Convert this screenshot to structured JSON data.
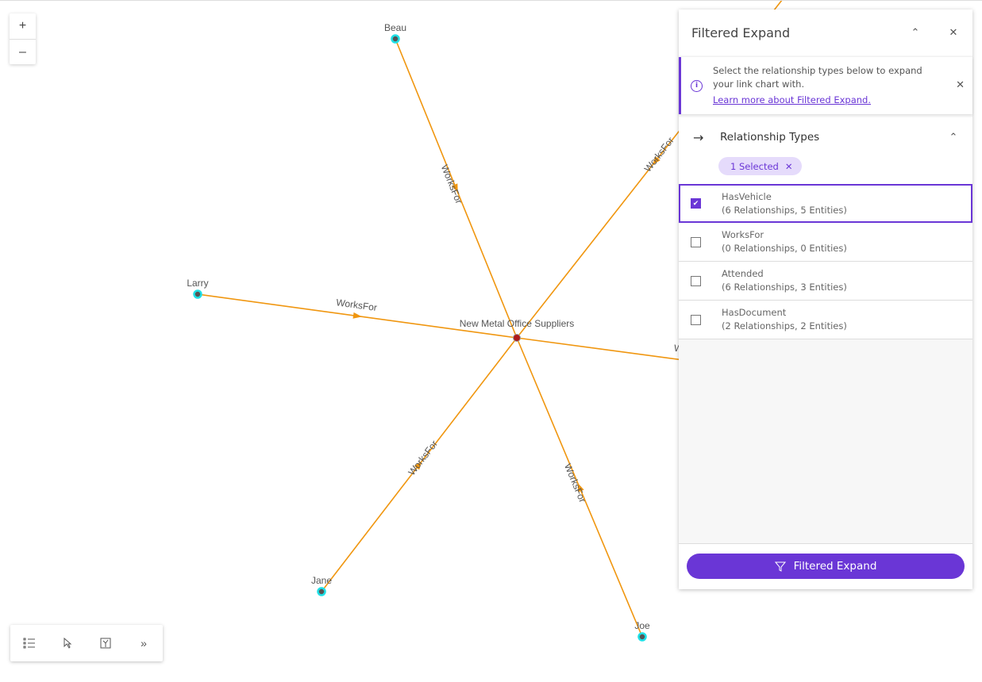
{
  "graph": {
    "center": {
      "label": "New Metal Office Suppliers",
      "color": "#b01a1a"
    },
    "nodes": [
      {
        "label": "Beau"
      },
      {
        "label": "Larry"
      },
      {
        "label": "Jane"
      },
      {
        "label": "Joe"
      }
    ],
    "edge_label": "WorksFor",
    "edge_color": "#f0960f",
    "node_color": "#1ee0e6"
  },
  "zoom": {
    "in": "+",
    "out": "–"
  },
  "toolbar": {
    "icons": [
      "list-icon",
      "select-pointer-icon",
      "layout-icon",
      "chevron-double-right-icon"
    ],
    "more": "»"
  },
  "panel": {
    "title": "Filtered Expand",
    "notice": {
      "text": "Select the relationship types below to expand your link chart with.",
      "link": "Learn more about Filtered Expand."
    },
    "section_title": "Relationship Types",
    "chip": "1 Selected",
    "items": [
      {
        "name": "HasVehicle",
        "detail": "(6 Relationships, 5 Entities)",
        "checked": true
      },
      {
        "name": "WorksFor",
        "detail": "(0 Relationships, 0 Entities)",
        "checked": false
      },
      {
        "name": "Attended",
        "detail": "(6 Relationships, 3 Entities)",
        "checked": false
      },
      {
        "name": "HasDocument",
        "detail": "(2 Relationships, 2 Entities)",
        "checked": false
      }
    ],
    "button": "Filtered Expand",
    "accent": "#6a36d6"
  }
}
